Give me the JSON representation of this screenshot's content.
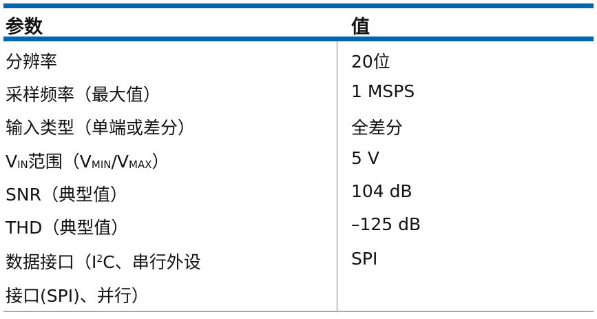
{
  "header": {
    "param": "参数",
    "value": "值"
  },
  "rows": [
    {
      "param": "分辨率",
      "value": "20位"
    },
    {
      "param": "采样频率（最大值）",
      "value": "1 MSPS"
    },
    {
      "param": "输入类型（单端或差分）",
      "value": "全差分"
    },
    {
      "param_parts": [
        "V",
        "IN",
        "范围（V",
        "MIN",
        "/V",
        "MAX",
        "）"
      ],
      "value": "5 V"
    },
    {
      "param": "SNR（典型值）",
      "value": "104 dB"
    },
    {
      "param": "THD（典型值）",
      "value": "–125 dB"
    },
    {
      "param_parts": [
        "数据接口（I",
        "2",
        "C、串行外设",
        "接口(SPI)、并行）"
      ],
      "value": "SPI"
    }
  ],
  "colors": {
    "accent": "#0066b3"
  }
}
